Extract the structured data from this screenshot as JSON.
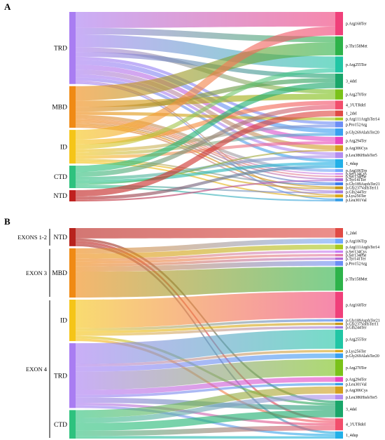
{
  "panels": [
    {
      "letter": "A",
      "exons": [],
      "domains": [
        {
          "label": "TRD",
          "color": "#a97df2",
          "flows": [
            [
              "p.Arg168Ter",
              10
            ],
            [
              "p.Thr158Met",
              4
            ],
            [
              "p.Arg255Ter",
              8
            ],
            [
              "p.Arg270Ter",
              3
            ],
            [
              "3_4del",
              3
            ],
            [
              "p.Pro152Arg",
              2
            ],
            [
              "p.Gly269AlafsTer20",
              3
            ],
            [
              "p.Arg294Ter",
              3
            ],
            [
              "p.Arg306Cys",
              3
            ],
            [
              "p.Leu386HisfsTer5",
              2
            ],
            [
              "1_4dup",
              2
            ],
            [
              "p.Lys256Ter",
              1
            ],
            [
              "p.Leu301Val",
              1
            ]
          ]
        },
        {
          "label": "MBD",
          "color": "#f08a14",
          "flows": [
            [
              "p.Thr158Met",
              9
            ],
            [
              "p.Arg270Ter",
              4
            ],
            [
              "3_4del",
              3
            ],
            [
              "p.Arg111ArgfsTer14",
              2
            ],
            [
              "p.Arg106Trp",
              2
            ],
            [
              "p.Ser134Cys",
              1
            ],
            [
              "p.Ser134Phe",
              1
            ],
            [
              "p.Tyr141Ter",
              1
            ],
            [
              "p.Gly189AspfsTer21",
              1
            ],
            [
              "p.Gly237ValfsTer11",
              1
            ],
            [
              "p.Gln244Ter",
              1
            ]
          ]
        },
        {
          "label": "ID",
          "color": "#f5c518",
          "flows": [
            [
              "p.Arg168Ter",
              6
            ],
            [
              "4_3'UTRdel",
              3
            ],
            [
              "p.Arg255Ter",
              3
            ],
            [
              "p.Pro152Arg",
              2
            ],
            [
              "p.Gly269AlafsTer20",
              2
            ],
            [
              "p.Arg294Ter",
              2
            ],
            [
              "p.Gly189AspfsTer21",
              1
            ],
            [
              "p.Gly237ValfsTer11",
              1
            ],
            [
              "p.Lys256Ter",
              1
            ]
          ]
        },
        {
          "label": "CTD",
          "color": "#2ec27e",
          "flows": [
            [
              "3_4del",
              4
            ],
            [
              "4_3'UTRdel",
              3
            ],
            [
              "p.Leu386HisfsTer5",
              2
            ],
            [
              "1_4dup",
              2
            ],
            [
              "p.Arg306Cys",
              1
            ],
            [
              "p.Gln244Ter",
              1
            ],
            [
              "p.Leu301Val",
              1
            ]
          ]
        },
        {
          "label": "NTD",
          "color": "#c0211f",
          "flows": [
            [
              "1_2del",
              4
            ],
            [
              "1_4dup",
              2
            ],
            [
              "p.Tyr141Ter",
              1
            ]
          ]
        }
      ],
      "variants": [
        {
          "label": "p.Arg168Ter",
          "color": "#f0407a"
        },
        {
          "label": "p.Thr158Met",
          "color": "#2db34a"
        },
        {
          "label": "p.Arg255Ter",
          "color": "#21c6a5"
        },
        {
          "label": "3_4del",
          "color": "#1aa66a"
        },
        {
          "label": "p.Arg270Ter",
          "color": "#7ac21a"
        },
        {
          "label": "4_3'UTRdel",
          "color": "#f24e6c"
        },
        {
          "label": "1_2del",
          "color": "#e04a44"
        },
        {
          "label": "p.Arg111ArgfsTer14",
          "color": "#a7c91f"
        },
        {
          "label": "p.Pro152Arg",
          "color": "#6c8ef5"
        },
        {
          "label": "p.Gly269AlafsTer20",
          "color": "#39a0f0"
        },
        {
          "label": "p.Arg294Ter",
          "color": "#e846c0"
        },
        {
          "label": "p.Arg306Cys",
          "color": "#d4a020"
        },
        {
          "label": "p.Leu386HisfsTer5",
          "color": "#b38df0"
        },
        {
          "label": "1_4dup",
          "color": "#22b0e8"
        },
        {
          "label": "p.Arg106Trp",
          "color": "#6fa8ff"
        },
        {
          "label": "p.Ser134Cys",
          "color": "#c77df5"
        },
        {
          "label": "p.Ser134Phe",
          "color": "#e07aa8"
        },
        {
          "label": "p.Tyr141Ter",
          "color": "#b06ad8"
        },
        {
          "label": "p.Gly189AspfsTer21",
          "color": "#3d7cf0"
        },
        {
          "label": "p.Gly237ValfsTer11",
          "color": "#c79a1a"
        },
        {
          "label": "p.Gln244Ter",
          "color": "#a07ae0"
        },
        {
          "label": "p.Lys256Ter",
          "color": "#d9a81a"
        },
        {
          "label": "p.Leu301Val",
          "color": "#3aa0e8"
        }
      ]
    },
    {
      "letter": "B",
      "exons": [
        {
          "label": "EXONS 1-2",
          "domains": [
            "NTD"
          ]
        },
        {
          "label": "EXON 3",
          "domains": [
            "MBD"
          ]
        },
        {
          "label": "EXON 4",
          "domains": [
            "ID",
            "TRD",
            "CTD"
          ]
        }
      ],
      "domains": [
        {
          "label": "NTD",
          "color": "#b8231d",
          "flows": [
            [
              "1_2del",
              4
            ],
            [
              "3_4del",
              1
            ],
            [
              "4_3'UTRdel",
              1
            ],
            [
              "1_4dup",
              1
            ]
          ]
        },
        {
          "label": "MBD",
          "color": "#f08a14",
          "flows": [
            [
              "p.Arg106Trp",
              2
            ],
            [
              "p.Arg111ArgfsTer14",
              2
            ],
            [
              "p.Ser134Cys",
              1
            ],
            [
              "p.Ser134Phe",
              1
            ],
            [
              "p.Tyr141Ter",
              1
            ],
            [
              "p.Pro152Arg",
              2
            ],
            [
              "p.Thr158Met",
              10
            ]
          ]
        },
        {
          "label": "ID",
          "color": "#f5c518",
          "flows": [
            [
              "p.Arg168Ter",
              11
            ],
            [
              "p.Gly189AspfsTer21",
              1
            ],
            [
              "p.Gly237ValfsTer11",
              1
            ],
            [
              "p.Gln244Ter",
              1
            ],
            [
              "3_4del",
              1
            ],
            [
              "4_3'UTRdel",
              1
            ]
          ]
        },
        {
          "label": "TRD",
          "color": "#a97df2",
          "flows": [
            [
              "p.Arg255Ter",
              8
            ],
            [
              "p.Lys256Ter",
              1
            ],
            [
              "p.Gly269AlafsTer20",
              2
            ],
            [
              "p.Arg270Ter",
              7
            ],
            [
              "p.Arg294Ter",
              2
            ],
            [
              "p.Leu301Val",
              1
            ],
            [
              "3_4del",
              2
            ],
            [
              "4_3'UTRdel",
              1
            ],
            [
              "1_4dup",
              1
            ]
          ]
        },
        {
          "label": "CTD",
          "color": "#2ec27e",
          "flows": [
            [
              "p.Arg306Cys",
              3
            ],
            [
              "p.Leu386HisfsTer5",
              2
            ],
            [
              "3_4del",
              3
            ],
            [
              "4_3'UTRdel",
              2
            ],
            [
              "1_4dup",
              1
            ]
          ]
        }
      ],
      "variants": [
        {
          "label": "1_2del",
          "color": "#e04a44"
        },
        {
          "label": "p.Arg106Trp",
          "color": "#6fa8ff"
        },
        {
          "label": "p.Arg111ArgfsTer14",
          "color": "#a7c91f"
        },
        {
          "label": "p.Ser134Cys",
          "color": "#c77df5"
        },
        {
          "label": "p.Ser134Phe",
          "color": "#e07aa8"
        },
        {
          "label": "p.Tyr141Ter",
          "color": "#b06ad8"
        },
        {
          "label": "p.Pro152Arg",
          "color": "#6c8ef5"
        },
        {
          "label": "p.Thr158Met",
          "color": "#2db34a"
        },
        {
          "label": "p.Arg168Ter",
          "color": "#f0407a"
        },
        {
          "label": "p.Gly189AspfsTer21",
          "color": "#3d7cf0"
        },
        {
          "label": "p.Gly237ValfsTer11",
          "color": "#c79a1a"
        },
        {
          "label": "p.Gln244Ter",
          "color": "#a07ae0"
        },
        {
          "label": "p.Arg255Ter",
          "color": "#21c6a5"
        },
        {
          "label": "p.Lys256Ter",
          "color": "#d9a81a"
        },
        {
          "label": "p.Gly269AlafsTer20",
          "color": "#39a0f0"
        },
        {
          "label": "p.Arg270Ter",
          "color": "#7ac21a"
        },
        {
          "label": "p.Arg294Ter",
          "color": "#e846c0"
        },
        {
          "label": "p.Leu301Val",
          "color": "#3aa0e8"
        },
        {
          "label": "p.Arg306Cys",
          "color": "#d4a020"
        },
        {
          "label": "p.Leu386HisfsTer5",
          "color": "#b38df0"
        },
        {
          "label": "3_4del",
          "color": "#1aa66a"
        },
        {
          "label": "4_3'UTRdel",
          "color": "#f24e6c"
        },
        {
          "label": "1_4dup",
          "color": "#22b0e8"
        }
      ]
    }
  ]
}
